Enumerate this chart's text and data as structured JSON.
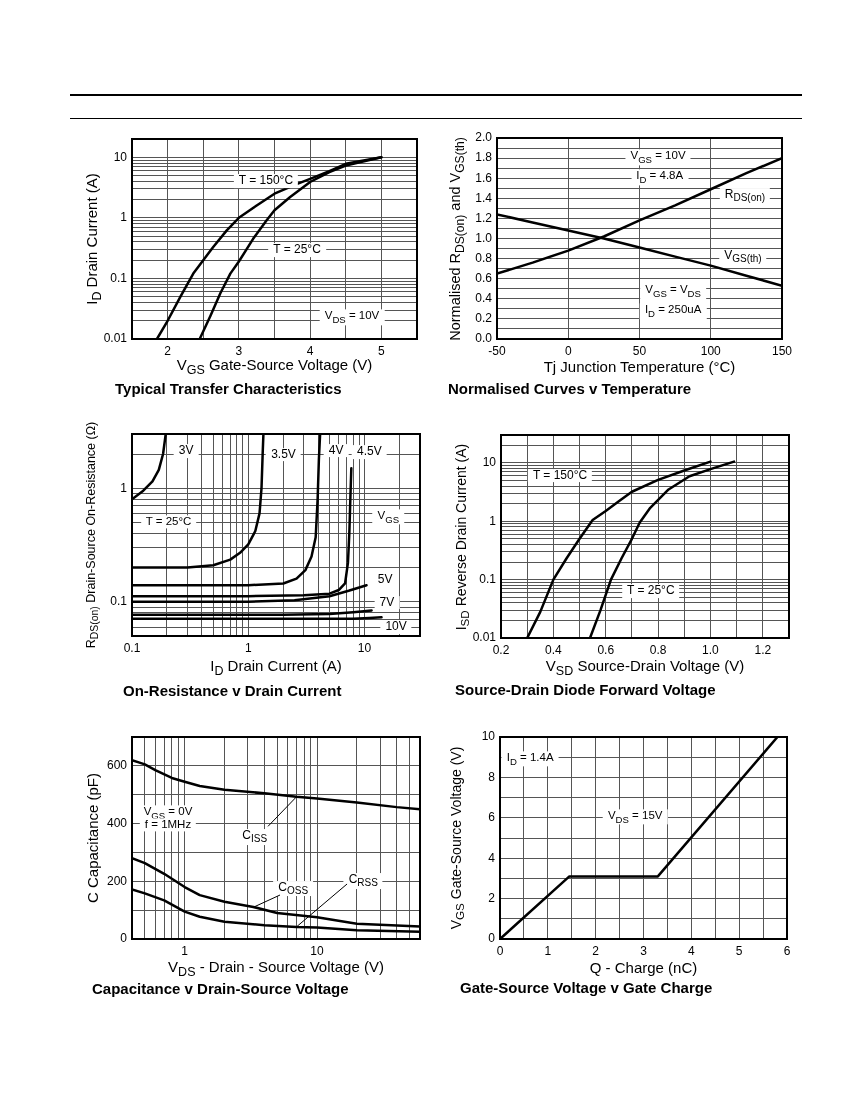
{
  "chart_data": [
    {
      "type": "line",
      "title": "Typical Transfer Characteristics",
      "xlabel": "V$_{GS}$ Gate-Source Voltage (V)",
      "ylabel": "I$_{D}$ Drain Current (A)",
      "log": "y",
      "grid": true,
      "xlim": [
        1.5,
        5.5
      ],
      "xticks": [
        2,
        {
          "value": 2.5,
          "label": null
        },
        3,
        {
          "value": 3.5,
          "label": null
        },
        4,
        {
          "value": 4.5,
          "label": null
        },
        5
      ],
      "ylim": [
        0.01,
        20
      ],
      "yticks": [
        0.01,
        {
          "value": 0.02,
          "label": null
        },
        {
          "value": 0.03,
          "label": null
        },
        {
          "value": 0.04,
          "label": null
        },
        {
          "value": 0.05,
          "label": null
        },
        {
          "value": 0.06,
          "label": null
        },
        {
          "value": 0.07,
          "label": null
        },
        {
          "value": 0.08,
          "label": null
        },
        {
          "value": 0.09,
          "label": null
        },
        0.1,
        {
          "value": 0.2,
          "label": null
        },
        {
          "value": 0.3,
          "label": null
        },
        {
          "value": 0.4,
          "label": null
        },
        {
          "value": 0.5,
          "label": null
        },
        {
          "value": 0.6,
          "label": null
        },
        {
          "value": 0.7,
          "label": null
        },
        {
          "value": 0.8,
          "label": null
        },
        {
          "value": 0.9,
          "label": null
        },
        1,
        {
          "value": 2,
          "label": null
        },
        {
          "value": 3,
          "label": null
        },
        {
          "value": 4,
          "label": null
        },
        {
          "value": 5,
          "label": null
        },
        {
          "value": 6,
          "label": null
        },
        {
          "value": 7,
          "label": null
        },
        {
          "value": 8,
          "label": null
        },
        {
          "value": 9,
          "label": null
        },
        10
      ],
      "series": [
        {
          "name": "T = 150°C",
          "color": "#000000",
          "x": [
            1.85,
            2.0,
            2.18,
            2.36,
            2.5,
            2.64,
            2.83,
            3.0,
            3.25,
            3.5,
            3.81,
            4.0,
            4.27,
            4.5,
            5.0
          ],
          "values": [
            0.01,
            0.02,
            0.05,
            0.12,
            0.2,
            0.33,
            0.62,
            1.0,
            1.6,
            2.5,
            3.6,
            4.4,
            5.9,
            7.8,
            10
          ]
        },
        {
          "name": "T = 25°C",
          "color": "#000000",
          "x": [
            2.45,
            2.6,
            2.74,
            2.88,
            3.0,
            3.2,
            3.39,
            3.5,
            3.72,
            4.0,
            4.27,
            4.5,
            5.0
          ],
          "values": [
            0.01,
            0.024,
            0.057,
            0.12,
            0.19,
            0.45,
            0.91,
            1.33,
            2.2,
            3.9,
            5.7,
            7.3,
            10
          ]
        }
      ],
      "annotations": [
        "V$_{DS}$ = 10V"
      ]
    },
    {
      "type": "line",
      "title": "Normalised Curves v Temperature",
      "xlabel": "Tj Junction Temperature (°C)",
      "ylabel": "Normalised R$_{DS(on)}$ and V$_{GS(th)}$",
      "grid": true,
      "xlim": [
        -50,
        150
      ],
      "xticks": [
        -50,
        0,
        50,
        100,
        150
      ],
      "ylim": [
        0,
        2
      ],
      "yticks": [
        {
          "value": 0,
          "label": "0.0"
        },
        {
          "value": 0.1,
          "label": null
        },
        0.2,
        {
          "value": 0.3,
          "label": null
        },
        0.4,
        {
          "value": 0.5,
          "label": null
        },
        0.6,
        {
          "value": 0.7,
          "label": null
        },
        0.8,
        {
          "value": 0.9,
          "label": null
        },
        {
          "value": 1,
          "label": "1.0"
        },
        {
          "value": 1.1,
          "label": null
        },
        1.2,
        {
          "value": 1.3,
          "label": null
        },
        1.4,
        {
          "value": 1.5,
          "label": null
        },
        1.6,
        {
          "value": 1.7,
          "label": null
        },
        1.8,
        {
          "value": 1.9,
          "label": null
        },
        {
          "value": 2,
          "label": "2.0"
        }
      ],
      "x": [
        -50,
        -25,
        0,
        25,
        50,
        75,
        100,
        125,
        150
      ],
      "series": [
        {
          "name": "R$_{DS(on)}$",
          "color": "#000000",
          "values": [
            0.65,
            0.76,
            0.88,
            1.02,
            1.18,
            1.33,
            1.49,
            1.65,
            1.8
          ]
        },
        {
          "name": "V$_{GS(th)}$",
          "color": "#000000",
          "values": [
            1.24,
            1.16,
            1.08,
            1.0,
            0.91,
            0.82,
            0.73,
            0.63,
            0.53
          ]
        }
      ],
      "annotations": [
        "V$_{GS}$ = 10V",
        "I$_{D}$ = 4.8A",
        "V$_{GS}$ = V$_{DS}$",
        "I$_{D}$ = 250uA"
      ]
    },
    {
      "type": "line",
      "title": "On-Resistance v Drain Current",
      "xlabel": "I$_{D}$ Drain Current (A)",
      "ylabel": "R$_{DS(on)}$ Drain-Source On-Resistance (Ω)",
      "log": "xy",
      "grid": true,
      "xlim": [
        0.1,
        30
      ],
      "xticks": [
        0.1,
        {
          "value": 0.2,
          "label": null
        },
        {
          "value": 0.3,
          "label": null
        },
        {
          "value": 0.4,
          "label": null
        },
        {
          "value": 0.5,
          "label": null
        },
        {
          "value": 0.6,
          "label": null
        },
        {
          "value": 0.7,
          "label": null
        },
        {
          "value": 0.8,
          "label": null
        },
        {
          "value": 0.9,
          "label": null
        },
        1,
        {
          "value": 2,
          "label": null
        },
        {
          "value": 3,
          "label": null
        },
        {
          "value": 4,
          "label": null
        },
        {
          "value": 5,
          "label": null
        },
        {
          "value": 6,
          "label": null
        },
        {
          "value": 7,
          "label": null
        },
        {
          "value": 8,
          "label": null
        },
        {
          "value": 9,
          "label": null
        },
        10,
        {
          "value": 20,
          "label": null
        }
      ],
      "ylim": [
        0.05,
        3
      ],
      "yticks": [
        {
          "value": 0.06,
          "label": null
        },
        {
          "value": 0.07,
          "label": null
        },
        {
          "value": 0.08,
          "label": null
        },
        {
          "value": 0.09,
          "label": null
        },
        0.1,
        {
          "value": 0.2,
          "label": null
        },
        {
          "value": 0.3,
          "label": null
        },
        {
          "value": 0.4,
          "label": null
        },
        {
          "value": 0.5,
          "label": null
        },
        {
          "value": 0.6,
          "label": null
        },
        {
          "value": 0.7,
          "label": null
        },
        {
          "value": 0.8,
          "label": null
        },
        {
          "value": 0.9,
          "label": null
        },
        1,
        {
          "value": 2,
          "label": null
        }
      ],
      "series": [
        {
          "name": "3V",
          "color": "#000000",
          "x": [
            0.1,
            0.125,
            0.15,
            0.17,
            0.185,
            0.195
          ],
          "values": [
            0.8,
            0.95,
            1.15,
            1.45,
            2.0,
            3.0
          ]
        },
        {
          "name": "3.5V",
          "color": "#000000",
          "x": [
            0.1,
            0.3,
            0.5,
            0.7,
            0.85,
            1.0,
            1.15,
            1.25,
            1.3,
            1.33,
            1.35
          ],
          "values": [
            0.2,
            0.2,
            0.21,
            0.235,
            0.27,
            0.32,
            0.42,
            0.6,
            1.0,
            2.0,
            3.0
          ]
        },
        {
          "name": "4V",
          "color": "#000000",
          "x": [
            0.1,
            0.5,
            1,
            2,
            2.6,
            3.1,
            3.5,
            3.8,
            3.95,
            4.05,
            4.15
          ],
          "values": [
            0.14,
            0.14,
            0.14,
            0.145,
            0.16,
            0.19,
            0.25,
            0.37,
            0.8,
            1.8,
            3.0
          ]
        },
        {
          "name": "4.5V",
          "color": "#000000",
          "x": [
            0.1,
            1,
            3,
            5,
            6,
            6.8,
            7.2,
            7.4,
            7.55,
            7.7
          ],
          "values": [
            0.112,
            0.112,
            0.114,
            0.118,
            0.127,
            0.145,
            0.22,
            0.4,
            0.8,
            1.5
          ]
        },
        {
          "name": "5V",
          "color": "#000000",
          "x": [
            0.1,
            1,
            2.5,
            5,
            7.3,
            10.4
          ],
          "values": [
            0.1,
            0.1,
            0.103,
            0.112,
            0.125,
            0.14
          ]
        },
        {
          "name": "7V",
          "color": "#000000",
          "x": [
            0.1,
            2,
            5,
            8,
            11.5
          ],
          "values": [
            0.077,
            0.077,
            0.078,
            0.081,
            0.084
          ]
        },
        {
          "name": "10V",
          "color": "#000000",
          "x": [
            0.1,
            5,
            8,
            11,
            14
          ],
          "values": [
            0.071,
            0.071,
            0.071,
            0.072,
            0.073
          ]
        }
      ],
      "annotations": [
        "T = 25°C",
        "V$_{GS}$"
      ]
    },
    {
      "type": "line",
      "title": "Source-Drain Diode Forward Voltage",
      "xlabel": "V$_{SD}$ Source-Drain Voltage (V)",
      "ylabel": "I$_{SD}$ Reverse Drain Current (A)",
      "log": "y",
      "grid": true,
      "xlim": [
        0.2,
        1.3
      ],
      "xticks": [
        0.2,
        {
          "value": 0.3,
          "label": null
        },
        0.4,
        {
          "value": 0.5,
          "label": null
        },
        0.6,
        {
          "value": 0.7,
          "label": null
        },
        0.8,
        {
          "value": 0.9,
          "label": null
        },
        {
          "value": 1,
          "label": "1.0"
        },
        {
          "value": 1.1,
          "label": null
        },
        1.2
      ],
      "ylim": [
        0.01,
        30
      ],
      "yticks": [
        0.01,
        {
          "value": 0.02,
          "label": null
        },
        {
          "value": 0.03,
          "label": null
        },
        {
          "value": 0.04,
          "label": null
        },
        {
          "value": 0.05,
          "label": null
        },
        {
          "value": 0.06,
          "label": null
        },
        {
          "value": 0.07,
          "label": null
        },
        {
          "value": 0.08,
          "label": null
        },
        {
          "value": 0.09,
          "label": null
        },
        0.1,
        {
          "value": 0.2,
          "label": null
        },
        {
          "value": 0.3,
          "label": null
        },
        {
          "value": 0.4,
          "label": null
        },
        {
          "value": 0.5,
          "label": null
        },
        {
          "value": 0.6,
          "label": null
        },
        {
          "value": 0.7,
          "label": null
        },
        {
          "value": 0.8,
          "label": null
        },
        {
          "value": 0.9,
          "label": null
        },
        1,
        {
          "value": 2,
          "label": null
        },
        {
          "value": 3,
          "label": null
        },
        {
          "value": 4,
          "label": null
        },
        {
          "value": 5,
          "label": null
        },
        {
          "value": 6,
          "label": null
        },
        {
          "value": 7,
          "label": null
        },
        {
          "value": 8,
          "label": null
        },
        {
          "value": 9,
          "label": null
        },
        10,
        {
          "value": 20,
          "label": null
        }
      ],
      "series": [
        {
          "name": "T = 150°C",
          "color": "#000000",
          "x": [
            0.3,
            0.35,
            0.4,
            0.45,
            0.5,
            0.55,
            0.6,
            0.65,
            0.7,
            0.8,
            0.9,
            1.0
          ],
          "values": [
            0.01,
            0.028,
            0.1,
            0.23,
            0.5,
            1.05,
            1.5,
            2.2,
            3.2,
            5.1,
            7.4,
            10.5
          ]
        },
        {
          "name": "T = 25°C",
          "color": "#000000",
          "x": [
            0.54,
            0.58,
            0.62,
            0.66,
            0.7,
            0.73,
            0.77,
            0.84,
            0.92,
            1.0,
            1.09
          ],
          "values": [
            0.01,
            0.03,
            0.1,
            0.23,
            0.5,
            0.95,
            1.7,
            3.5,
            5.9,
            7.8,
            10.5
          ]
        }
      ]
    },
    {
      "type": "line",
      "title": "Capacitance v Drain-Source Voltage",
      "xlabel": "V$_{DS}$ - Drain - Source Voltage (V)",
      "ylabel": "C Capacitance (pF)",
      "log": "x",
      "grid": true,
      "xlim": [
        0.4,
        60
      ],
      "xticks": [
        {
          "value": 0.5,
          "label": null
        },
        {
          "value": 0.6,
          "label": null
        },
        {
          "value": 0.7,
          "label": null
        },
        {
          "value": 0.8,
          "label": null
        },
        {
          "value": 0.9,
          "label": null
        },
        1,
        {
          "value": 2,
          "label": null
        },
        {
          "value": 3,
          "label": null
        },
        {
          "value": 4,
          "label": null
        },
        {
          "value": 5,
          "label": null
        },
        {
          "value": 6,
          "label": null
        },
        {
          "value": 7,
          "label": null
        },
        {
          "value": 8,
          "label": null
        },
        {
          "value": 9,
          "label": null
        },
        10,
        {
          "value": 20,
          "label": null
        },
        {
          "value": 30,
          "label": null
        },
        {
          "value": 40,
          "label": null
        },
        {
          "value": 50,
          "label": null
        }
      ],
      "ylim": [
        0,
        700
      ],
      "yticks": [
        0,
        {
          "value": 100,
          "label": null
        },
        200,
        {
          "value": 300,
          "label": null
        },
        400,
        {
          "value": 500,
          "label": null
        },
        600
      ],
      "series": [
        {
          "name": "C$_{ISS}$",
          "color": "#000000",
          "x": [
            0.4,
            0.5,
            0.6,
            0.8,
            1,
            1.3,
            2,
            4,
            7,
            10,
            20,
            40,
            60
          ],
          "values": [
            620,
            605,
            585,
            558,
            545,
            530,
            517,
            505,
            493,
            487,
            473,
            457,
            450
          ]
        },
        {
          "name": "C$_{OSS}$",
          "color": "#000000",
          "x": [
            0.4,
            0.5,
            0.7,
            1,
            1.3,
            2,
            3.3,
            5,
            10,
            20,
            60
          ],
          "values": [
            280,
            263,
            226,
            180,
            152,
            129,
            111,
            90,
            75,
            53,
            43
          ]
        },
        {
          "name": "C$_{RSS}$",
          "color": "#000000",
          "x": [
            0.4,
            0.5,
            0.7,
            1,
            1.3,
            2,
            4,
            7,
            10,
            20,
            60
          ],
          "values": [
            172,
            158,
            134,
            95,
            77,
            60,
            48,
            42,
            40,
            30,
            25
          ]
        }
      ],
      "annotations": [
        "V$_{GS}$ = 0V",
        "f = 1MHz"
      ]
    },
    {
      "type": "line",
      "title": "Gate-Source Voltage v Gate Charge",
      "xlabel": "Q - Charge (nC)",
      "ylabel": "V$_{GS}$ Gate-Source Voltage (V)",
      "grid": true,
      "xlim": [
        0,
        6
      ],
      "xticks": [
        0,
        {
          "value": 0.5,
          "label": null
        },
        1,
        {
          "value": 1.5,
          "label": null
        },
        2,
        {
          "value": 2.5,
          "label": null
        },
        3,
        {
          "value": 3.5,
          "label": null
        },
        4,
        {
          "value": 4.5,
          "label": null
        },
        5,
        {
          "value": 5.5,
          "label": null
        },
        6
      ],
      "ylim": [
        0,
        10
      ],
      "yticks": [
        0,
        {
          "value": 1,
          "label": null
        },
        2,
        {
          "value": 3,
          "label": null
        },
        4,
        {
          "value": 5,
          "label": null
        },
        6,
        {
          "value": 7,
          "label": null
        },
        8,
        {
          "value": 9,
          "label": null
        },
        10
      ],
      "x": [
        0,
        1.45,
        3.3,
        5.8
      ],
      "series": [
        {
          "color": "#000000",
          "values": [
            0,
            3.1,
            3.1,
            10
          ]
        }
      ],
      "annotations": [
        "I$_{D}$ = 1.4A",
        "V$_{DS}$ = 15V"
      ]
    }
  ]
}
